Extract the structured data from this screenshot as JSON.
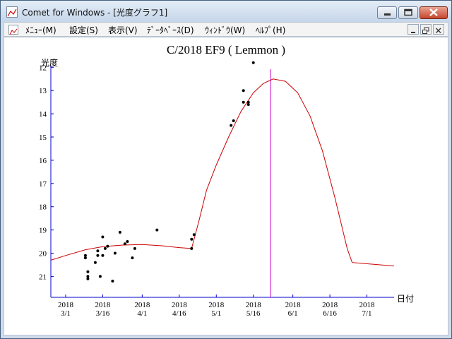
{
  "window": {
    "title": "Comet for Windows - [光度グラフ1]",
    "min_button": "minimize-icon",
    "max_button": "maximize-icon",
    "close_button": "close-icon"
  },
  "menu": {
    "items": [
      "ﾒﾆｭｰ(M)",
      "設定(S)",
      "表示(V)",
      "ﾃﾞｰﾀﾍﾞｰｽ(D)",
      "ｳｨﾝﾄﾞｳ(W)",
      "ﾍﾙﾌﾟ(H)"
    ],
    "mdi_buttons": [
      "minimize-icon",
      "restore-icon",
      "close-icon"
    ]
  },
  "colors": {
    "axis": "#0000cc",
    "curve": "#cc0000",
    "perihelion_line": "#cc00cc",
    "points": "#000000"
  },
  "chart_data": {
    "type": "scatter",
    "title": "C/2018 EF9 ( Lemmon )",
    "ylabel": "光度",
    "xlabel": "日付",
    "x_ticks": [
      "2018\n3/1",
      "2018\n3/16",
      "2018\n4/1",
      "2018\n4/16",
      "2018\n5/1",
      "2018\n5/16",
      "2018\n6/1",
      "2018\n6/16",
      "2018\n7/1"
    ],
    "x_tick_days": [
      0,
      15,
      31,
      46,
      61,
      76,
      92,
      107,
      122
    ],
    "y_ticks": [
      12,
      13,
      14,
      15,
      16,
      17,
      18,
      19,
      20,
      21
    ],
    "y_axis_reversed": true,
    "ylim": [
      11.2,
      21.9
    ],
    "xlim_days": [
      -6,
      133
    ],
    "perihelion_day": 83,
    "observations": [
      {
        "x": "2018-03-09",
        "y": 20.2
      },
      {
        "x": "2018-03-09",
        "y": 20.1
      },
      {
        "x": "2018-03-10",
        "y": 20.8
      },
      {
        "x": "2018-03-10",
        "y": 21.0
      },
      {
        "x": "2018-03-10",
        "y": 21.1
      },
      {
        "x": "2018-03-13",
        "y": 20.4
      },
      {
        "x": "2018-03-14",
        "y": 20.1
      },
      {
        "x": "2018-03-14",
        "y": 19.9
      },
      {
        "x": "2018-03-15",
        "y": 21.0
      },
      {
        "x": "2018-03-16",
        "y": 19.3
      },
      {
        "x": "2018-03-16",
        "y": 20.1
      },
      {
        "x": "2018-03-17",
        "y": 19.8
      },
      {
        "x": "2018-03-18",
        "y": 19.7
      },
      {
        "x": "2018-03-20",
        "y": 21.2
      },
      {
        "x": "2018-03-21",
        "y": 20.0
      },
      {
        "x": "2018-03-23",
        "y": 19.1
      },
      {
        "x": "2018-03-25",
        "y": 19.6
      },
      {
        "x": "2018-03-26",
        "y": 19.5
      },
      {
        "x": "2018-03-28",
        "y": 20.2
      },
      {
        "x": "2018-03-29",
        "y": 19.8
      },
      {
        "x": "2018-04-07",
        "y": 19.0
      },
      {
        "x": "2018-04-21",
        "y": 19.8
      },
      {
        "x": "2018-04-21",
        "y": 19.4
      },
      {
        "x": "2018-04-22",
        "y": 19.2
      },
      {
        "x": "2018-05-07",
        "y": 14.5
      },
      {
        "x": "2018-05-08",
        "y": 14.3
      },
      {
        "x": "2018-05-12",
        "y": 13.0
      },
      {
        "x": "2018-05-12",
        "y": 13.5
      },
      {
        "x": "2018-05-14",
        "y": 13.5
      },
      {
        "x": "2018-05-14",
        "y": 13.6
      },
      {
        "x": "2018-05-16",
        "y": 11.8
      }
    ],
    "model_curve": [
      {
        "x": "2018-02-23",
        "y": 20.3
      },
      {
        "x": "2018-03-01",
        "y": 20.1
      },
      {
        "x": "2018-03-09",
        "y": 19.85
      },
      {
        "x": "2018-03-16",
        "y": 19.72
      },
      {
        "x": "2018-03-24",
        "y": 19.65
      },
      {
        "x": "2018-04-01",
        "y": 19.63
      },
      {
        "x": "2018-04-09",
        "y": 19.68
      },
      {
        "x": "2018-04-16",
        "y": 19.76
      },
      {
        "x": "2018-04-21",
        "y": 19.8
      },
      {
        "x": "2018-04-24",
        "y": 18.6
      },
      {
        "x": "2018-04-27",
        "y": 17.3
      },
      {
        "x": "2018-05-01",
        "y": 16.2
      },
      {
        "x": "2018-05-06",
        "y": 15.0
      },
      {
        "x": "2018-05-11",
        "y": 13.9
      },
      {
        "x": "2018-05-16",
        "y": 13.1
      },
      {
        "x": "2018-05-20",
        "y": 12.7
      },
      {
        "x": "2018-05-24",
        "y": 12.5
      },
      {
        "x": "2018-05-29",
        "y": 12.6
      },
      {
        "x": "2018-06-03",
        "y": 13.1
      },
      {
        "x": "2018-06-08",
        "y": 14.1
      },
      {
        "x": "2018-06-13",
        "y": 15.6
      },
      {
        "x": "2018-06-18",
        "y": 17.6
      },
      {
        "x": "2018-06-23",
        "y": 19.8
      },
      {
        "x": "2018-06-25",
        "y": 20.4
      },
      {
        "x": "2018-07-12",
        "y": 20.55
      }
    ]
  }
}
